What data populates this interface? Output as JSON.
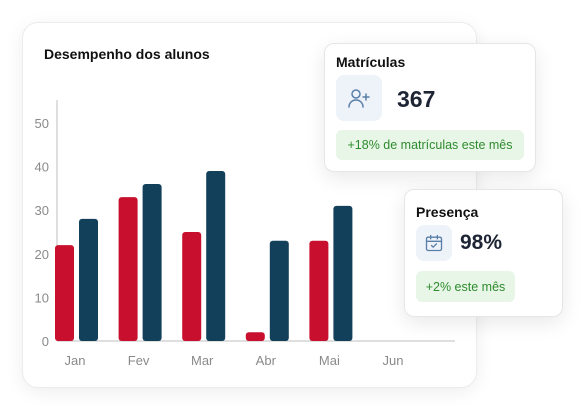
{
  "chart_data": {
    "type": "bar",
    "title": "Desempenho dos alunos",
    "categories": [
      "Jan",
      "Fev",
      "Mar",
      "Abr",
      "Mai",
      "Jun"
    ],
    "series": [
      {
        "values": [
          22,
          33,
          25,
          2,
          23,
          null
        ],
        "color": "#c8102e"
      },
      {
        "values": [
          28,
          36,
          39,
          23,
          31,
          null
        ],
        "color": "#123f5a"
      }
    ],
    "ylim": [
      0,
      50
    ],
    "yticks": [
      0,
      10,
      20,
      30,
      40,
      50
    ],
    "xlabel": "",
    "ylabel": "",
    "grid": false
  },
  "cards": {
    "matriculas": {
      "title": "Matrículas",
      "value": "367",
      "badge": "+18% de matrículas este mês",
      "icon": "user-plus-icon"
    },
    "presenca": {
      "title": "Presença",
      "value": "98%",
      "badge": "+2% este mês",
      "icon": "calendar-check-icon"
    }
  },
  "colors": {
    "accent_red": "#c8102e",
    "accent_navy": "#123f5a",
    "badge_green": "#2e8b2e",
    "badge_bg": "#e8f6e8",
    "icon_bg": "#eef3fa"
  }
}
